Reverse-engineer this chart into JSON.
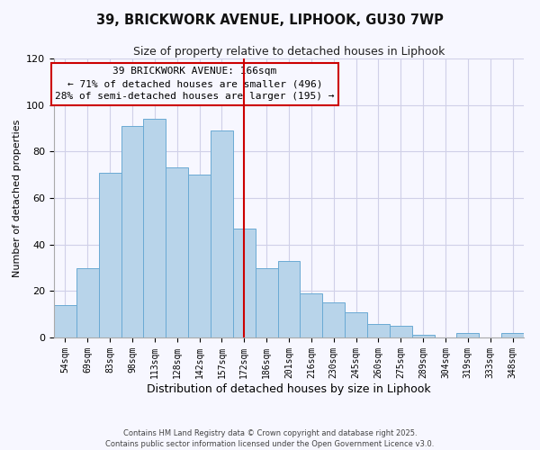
{
  "title": "39, BRICKWORK AVENUE, LIPHOOK, GU30 7WP",
  "subtitle": "Size of property relative to detached houses in Liphook",
  "xlabel": "Distribution of detached houses by size in Liphook",
  "ylabel": "Number of detached properties",
  "categories": [
    "54sqm",
    "69sqm",
    "83sqm",
    "98sqm",
    "113sqm",
    "128sqm",
    "142sqm",
    "157sqm",
    "172sqm",
    "186sqm",
    "201sqm",
    "216sqm",
    "230sqm",
    "245sqm",
    "260sqm",
    "275sqm",
    "289sqm",
    "304sqm",
    "319sqm",
    "333sqm",
    "348sqm"
  ],
  "values": [
    14,
    30,
    71,
    91,
    94,
    73,
    70,
    89,
    47,
    30,
    33,
    19,
    15,
    11,
    6,
    5,
    1,
    0,
    2,
    0,
    2
  ],
  "bar_color": "#b8d4ea",
  "bar_edgecolor": "#6aaad4",
  "vline_color": "#cc0000",
  "ylim": [
    0,
    120
  ],
  "yticks": [
    0,
    20,
    40,
    60,
    80,
    100,
    120
  ],
  "annotation_title": "39 BRICKWORK AVENUE: 166sqm",
  "annotation_line1": "← 71% of detached houses are smaller (496)",
  "annotation_line2": "28% of semi-detached houses are larger (195) →",
  "annotation_box_edgecolor": "#cc0000",
  "bg_color": "#f7f7ff",
  "grid_color": "#d0d0e8",
  "footer1": "Contains HM Land Registry data © Crown copyright and database right 2025.",
  "footer2": "Contains public sector information licensed under the Open Government Licence v3.0."
}
